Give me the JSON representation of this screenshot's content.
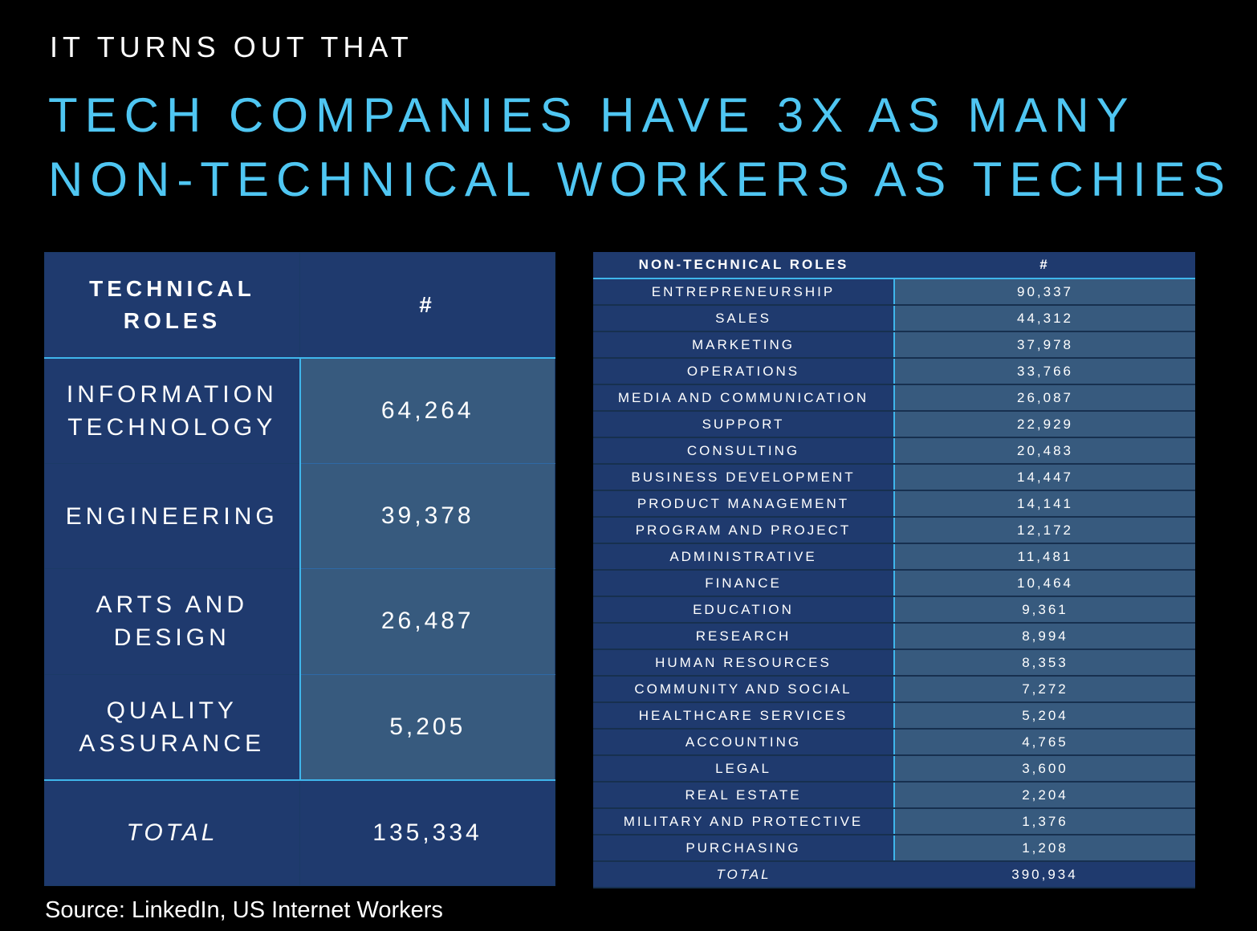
{
  "header": {
    "subtitle": "IT TURNS OUT THAT",
    "title_line1": "TECH COMPANIES HAVE 3X AS MANY",
    "title_line2": "NON-TECHNICAL WORKERS AS TECHIES"
  },
  "technical": {
    "header_role_line1": "TECHNICAL",
    "header_role_line2": "ROLES",
    "header_count": "#",
    "rows": [
      {
        "role_line1": "INFORMATION",
        "role_line2": "TECHNOLOGY",
        "count": "64,264"
      },
      {
        "role_line1": "ENGINEERING",
        "role_line2": "",
        "count": "39,378"
      },
      {
        "role_line1": "ARTS AND",
        "role_line2": "DESIGN",
        "count": "26,487"
      },
      {
        "role_line1": "QUALITY",
        "role_line2": "ASSURANCE",
        "count": "5,205"
      }
    ],
    "total_label": "TOTAL",
    "total_count": "135,334"
  },
  "non_technical": {
    "header_role": "NON-TECHNICAL ROLES",
    "header_count": "#",
    "rows": [
      {
        "role": "ENTREPRENEURSHIP",
        "count": "90,337"
      },
      {
        "role": "SALES",
        "count": "44,312"
      },
      {
        "role": "MARKETING",
        "count": "37,978"
      },
      {
        "role": "OPERATIONS",
        "count": "33,766"
      },
      {
        "role": "MEDIA AND COMMUNICATION",
        "count": "26,087"
      },
      {
        "role": "SUPPORT",
        "count": "22,929"
      },
      {
        "role": "CONSULTING",
        "count": "20,483"
      },
      {
        "role": "BUSINESS DEVELOPMENT",
        "count": "14,447"
      },
      {
        "role": "PRODUCT MANAGEMENT",
        "count": "14,141"
      },
      {
        "role": "PROGRAM AND PROJECT",
        "count": "12,172"
      },
      {
        "role": "ADMINISTRATIVE",
        "count": "11,481"
      },
      {
        "role": "FINANCE",
        "count": "10,464"
      },
      {
        "role": "EDUCATION",
        "count": "9,361"
      },
      {
        "role": "RESEARCH",
        "count": "8,994"
      },
      {
        "role": "HUMAN RESOURCES",
        "count": "8,353"
      },
      {
        "role": "COMMUNITY AND SOCIAL",
        "count": "7,272"
      },
      {
        "role": "HEALTHCARE SERVICES",
        "count": "5,204"
      },
      {
        "role": "ACCOUNTING",
        "count": "4,765"
      },
      {
        "role": "LEGAL",
        "count": "3,600"
      },
      {
        "role": "REAL ESTATE",
        "count": "2,204"
      },
      {
        "role": "MILITARY AND PROTECTIVE",
        "count": "1,376"
      },
      {
        "role": "PURCHASING",
        "count": "1,208"
      }
    ],
    "total_label": "TOTAL",
    "total_count": "390,934"
  },
  "source": "Source: LinkedIn, US Internet Workers",
  "colors": {
    "background": "#000000",
    "title": "#4fc6f2",
    "table_dark": "#1f3a6e",
    "table_light": "#375a7e",
    "accent_line": "#3fb6ec"
  }
}
